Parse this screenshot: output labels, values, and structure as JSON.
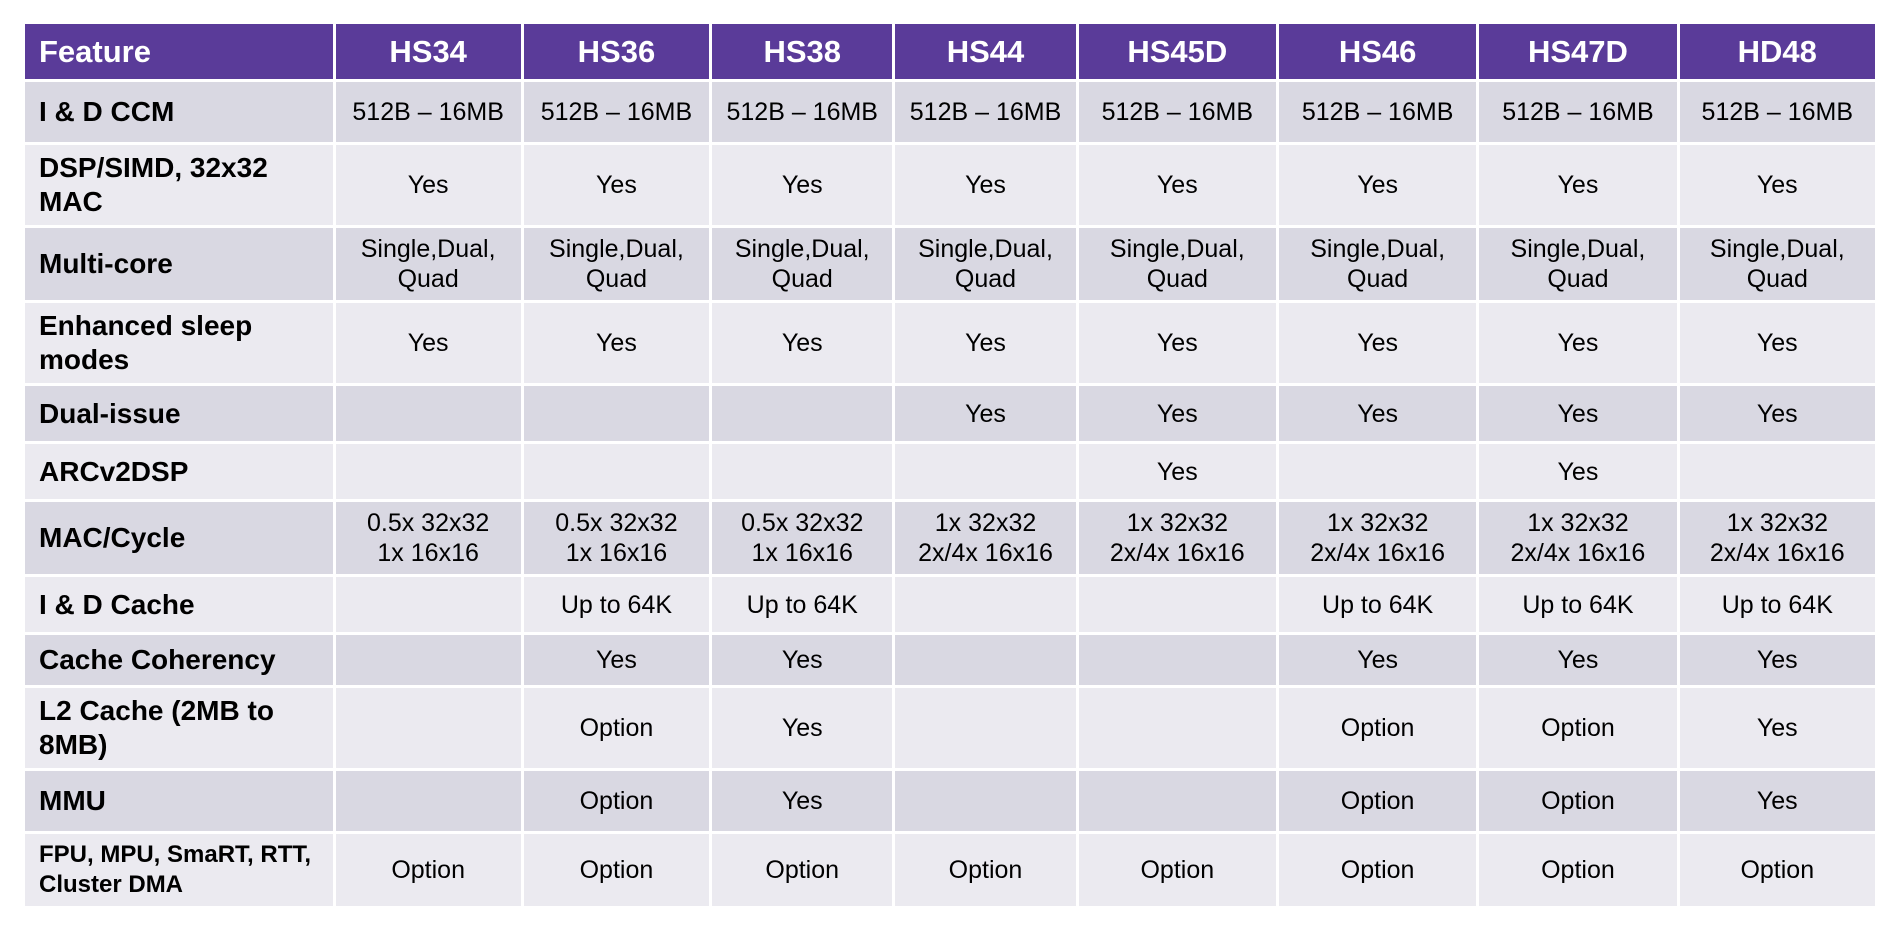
{
  "table": {
    "headers": [
      "Feature",
      "HS34",
      "HS36",
      "HS38",
      "HS44",
      "HS45D",
      "HS46",
      "HS47D",
      "HD48"
    ],
    "rows": [
      {
        "label": "I & D CCM",
        "cells": [
          [
            "512B – 16MB"
          ],
          [
            "512B – 16MB"
          ],
          [
            "512B – 16MB"
          ],
          [
            "512B – 16MB"
          ],
          [
            "512B – 16MB"
          ],
          [
            "512B – 16MB"
          ],
          [
            "512B – 16MB"
          ],
          [
            "512B – 16MB"
          ]
        ]
      },
      {
        "label": "DSP/SIMD, 32x32 MAC",
        "cells": [
          [
            "Yes"
          ],
          [
            "Yes"
          ],
          [
            "Yes"
          ],
          [
            "Yes"
          ],
          [
            "Yes"
          ],
          [
            "Yes"
          ],
          [
            "Yes"
          ],
          [
            "Yes"
          ]
        ]
      },
      {
        "label": "Multi-core",
        "cells": [
          [
            "Single,Dual,",
            "Quad"
          ],
          [
            "Single,Dual,",
            "Quad"
          ],
          [
            "Single,Dual,",
            "Quad"
          ],
          [
            "Single,Dual,",
            "Quad"
          ],
          [
            "Single,Dual,",
            "Quad"
          ],
          [
            "Single,Dual,",
            "Quad"
          ],
          [
            "Single,Dual,",
            "Quad"
          ],
          [
            "Single,Dual,",
            "Quad"
          ]
        ]
      },
      {
        "label": "Enhanced sleep modes",
        "cells": [
          [
            "Yes"
          ],
          [
            "Yes"
          ],
          [
            "Yes"
          ],
          [
            "Yes"
          ],
          [
            "Yes"
          ],
          [
            "Yes"
          ],
          [
            "Yes"
          ],
          [
            "Yes"
          ]
        ]
      },
      {
        "label": "Dual-issue",
        "cells": [
          [
            ""
          ],
          [
            ""
          ],
          [
            ""
          ],
          [
            "Yes"
          ],
          [
            "Yes"
          ],
          [
            "Yes"
          ],
          [
            "Yes"
          ],
          [
            "Yes"
          ]
        ]
      },
      {
        "label": "ARCv2DSP",
        "cells": [
          [
            ""
          ],
          [
            ""
          ],
          [
            ""
          ],
          [
            ""
          ],
          [
            "Yes"
          ],
          [
            ""
          ],
          [
            "Yes"
          ],
          [
            ""
          ]
        ]
      },
      {
        "label": "MAC/Cycle",
        "cells": [
          [
            "0.5x 32x32",
            "1x 16x16"
          ],
          [
            "0.5x 32x32",
            "1x 16x16"
          ],
          [
            "0.5x 32x32",
            "1x 16x16"
          ],
          [
            "1x 32x32",
            "2x/4x 16x16"
          ],
          [
            "1x 32x32",
            "2x/4x 16x16"
          ],
          [
            "1x 32x32",
            "2x/4x 16x16"
          ],
          [
            "1x 32x32",
            "2x/4x 16x16"
          ],
          [
            "1x 32x32",
            "2x/4x 16x16"
          ]
        ]
      },
      {
        "label": "I & D Cache",
        "cells": [
          [
            ""
          ],
          [
            "Up to 64K"
          ],
          [
            "Up to 64K"
          ],
          [
            ""
          ],
          [
            ""
          ],
          [
            "Up to 64K"
          ],
          [
            "Up to 64K"
          ],
          [
            "Up to 64K"
          ]
        ]
      },
      {
        "label": "Cache Coherency",
        "cells": [
          [
            ""
          ],
          [
            "Yes"
          ],
          [
            "Yes"
          ],
          [
            ""
          ],
          [
            ""
          ],
          [
            "Yes"
          ],
          [
            "Yes"
          ],
          [
            "Yes"
          ]
        ]
      },
      {
        "label": "L2 Cache (2MB to 8MB)",
        "cells": [
          [
            ""
          ],
          [
            "Option"
          ],
          [
            "Yes"
          ],
          [
            ""
          ],
          [
            ""
          ],
          [
            "Option"
          ],
          [
            "Option"
          ],
          [
            "Yes"
          ]
        ]
      },
      {
        "label": "MMU",
        "cells": [
          [
            ""
          ],
          [
            "Option"
          ],
          [
            "Yes"
          ],
          [
            ""
          ],
          [
            ""
          ],
          [
            "Option"
          ],
          [
            "Option"
          ],
          [
            "Yes"
          ]
        ]
      },
      {
        "label": "FPU, MPU, SmaRT, RTT, Cluster DMA",
        "cells": [
          [
            "Option"
          ],
          [
            "Option"
          ],
          [
            "Option"
          ],
          [
            "Option"
          ],
          [
            "Option"
          ],
          [
            "Option"
          ],
          [
            "Option"
          ],
          [
            "Option"
          ]
        ]
      }
    ]
  },
  "colors": {
    "header_bg": "#5a3b99",
    "row_dark": "#d9d8e2",
    "row_light": "#ebeaf0"
  }
}
